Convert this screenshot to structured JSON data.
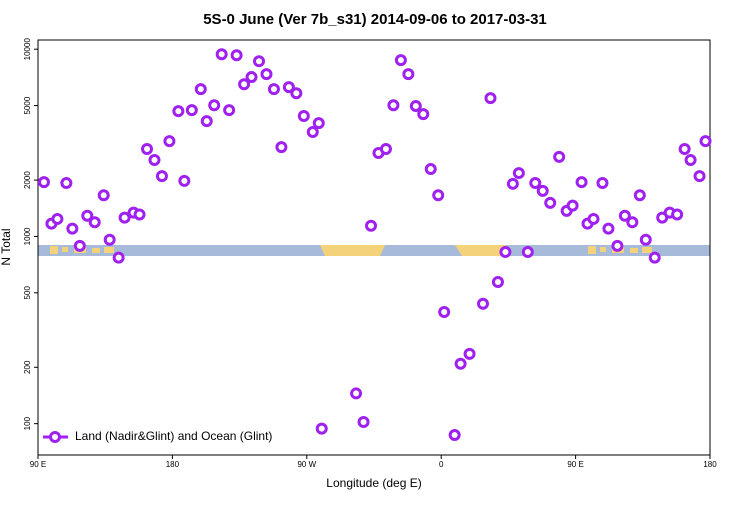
{
  "chart_data": {
    "type": "scatter",
    "title": "5S-0 June (Ver 7b_s31)   2014-09-06 to 2017-03-31",
    "x_label": "Longitude (deg E)",
    "y_label": "N Total",
    "xlim": [
      90,
      540
    ],
    "xticks": [
      {
        "value": 90,
        "label": "90 E"
      },
      180,
      {
        "value": 270,
        "label": "90 W"
      },
      {
        "value": 360,
        "label": "0"
      },
      {
        "value": 450,
        "label": "90 E"
      },
      {
        "value": 540,
        "label": "180"
      }
    ],
    "ylim": [
      68,
      11200
    ],
    "log_y": true,
    "yticks": [
      100,
      200,
      500,
      1000,
      2000,
      5000,
      10000
    ],
    "legend": "lower left",
    "series": [
      {
        "name": "Land (Nadir&Glint) and Ocean (Glint)",
        "color": "#a020f0",
        "x": [
          94,
          99,
          103,
          109,
          113,
          118,
          123,
          128,
          134,
          138,
          144,
          148,
          154,
          158,
          163,
          168,
          173,
          178,
          184,
          188,
          193,
          199,
          203,
          208,
          213,
          218,
          223,
          228,
          233,
          238,
          243,
          248,
          253,
          258,
          263,
          268,
          274,
          278,
          280,
          303,
          308,
          313,
          318,
          323,
          328,
          333,
          338,
          343,
          348,
          353,
          358,
          362,
          369,
          373,
          379,
          388,
          393,
          398,
          403,
          408,
          412,
          418,
          423,
          428,
          433,
          439,
          444,
          448,
          454,
          458,
          462,
          468,
          472,
          478,
          483,
          488,
          493,
          497,
          503,
          508,
          513,
          518,
          523,
          527,
          533,
          537
        ],
        "values": [
          1950,
          1170,
          1240,
          1930,
          1100,
          890,
          1290,
          1190,
          1660,
          960,
          770,
          1260,
          1340,
          1310,
          2930,
          2560,
          2100,
          3230,
          4670,
          1980,
          4730,
          6120,
          4130,
          5020,
          9400,
          4730,
          9290,
          6500,
          7100,
          8630,
          7360,
          6120,
          3000,
          6270,
          5820,
          4400,
          3610,
          4030,
          94,
          145,
          102,
          1140,
          2790,
          2930,
          5020,
          8740,
          7360,
          4970,
          4500,
          2290,
          1660,
          395,
          87,
          209,
          236,
          437,
          5480,
          571,
          826,
          1910,
          2180,
          826,
          1930,
          1750,
          1510,
          2660,
          1370,
          1460,
          1950,
          1170,
          1240,
          1930,
          1100,
          890,
          1290,
          1190,
          1660,
          960,
          770,
          1260,
          1340,
          1310,
          2930,
          2560,
          2100,
          3230
        ]
      }
    ]
  }
}
